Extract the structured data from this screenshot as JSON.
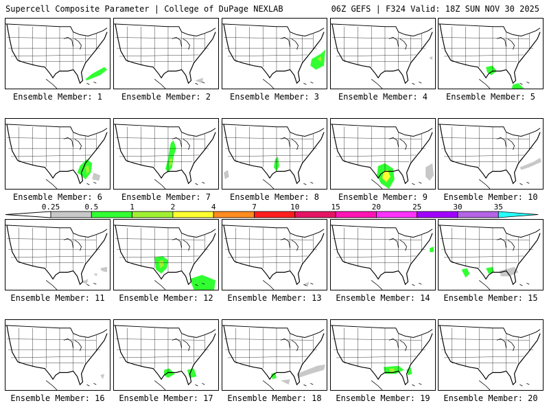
{
  "header": {
    "left": "Supercell Composite Parameter | College of DuPage NEXLAB",
    "right": "06Z GEFS | F324 Valid: 18Z SUN NOV 30 2025"
  },
  "legend": {
    "ticks": [
      "0.25",
      "0.5",
      "1",
      "2",
      "4",
      "7",
      "10",
      "15",
      "20",
      "25",
      "30",
      "35"
    ],
    "colors": [
      "#c8c8c8",
      "#32ff32",
      "#a0f032",
      "#ffff32",
      "#ff8c1e",
      "#ff1e1e",
      "#e61464",
      "#ff14b4",
      "#ff32ff",
      "#a000ff",
      "#b464e6",
      "#28ffff"
    ]
  },
  "members": [
    {
      "label": "Ensemble Member: 1"
    },
    {
      "label": "Ensemble Member: 2"
    },
    {
      "label": "Ensemble Member: 3"
    },
    {
      "label": "Ensemble Member: 4"
    },
    {
      "label": "Ensemble Member: 5"
    },
    {
      "label": "Ensemble Member: 6"
    },
    {
      "label": "Ensemble Member: 7"
    },
    {
      "label": "Ensemble Member: 8"
    },
    {
      "label": "Ensemble Member: 9"
    },
    {
      "label": "Ensemble Member: 10"
    },
    {
      "label": "Ensemble Member: 11"
    },
    {
      "label": "Ensemble Member: 12"
    },
    {
      "label": "Ensemble Member: 13"
    },
    {
      "label": "Ensemble Member: 14"
    },
    {
      "label": "Ensemble Member: 15"
    },
    {
      "label": "Ensemble Member: 16"
    },
    {
      "label": "Ensemble Member: 17"
    },
    {
      "label": "Ensemble Member: 18"
    },
    {
      "label": "Ensemble Member: 19"
    },
    {
      "label": "Ensemble Member: 20"
    }
  ]
}
